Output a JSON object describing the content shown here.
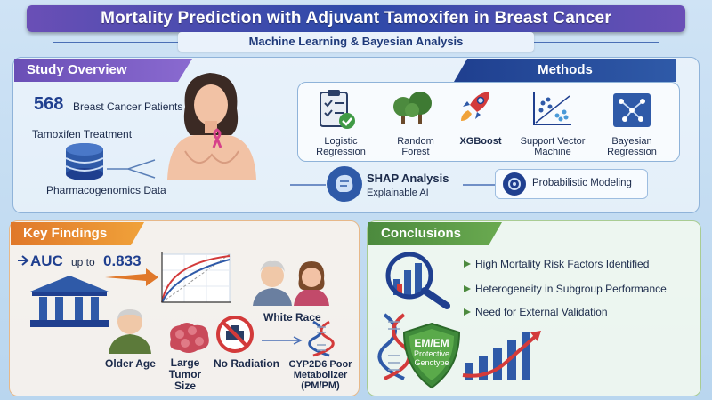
{
  "title": "Mortality Prediction with Adjuvant Tamoxifen in Breast Cancer",
  "subtitle": "Machine Learning & Bayesian Analysis",
  "overview": {
    "header": "Study Overview",
    "count": "568",
    "patients": "Breast Cancer Patients",
    "treatment": "Tamoxifen Treatment",
    "data": "Pharmacogenomics Data"
  },
  "methods": {
    "header": "Methods",
    "items": [
      {
        "label": "Logistic Regression",
        "icon": "checklist-icon"
      },
      {
        "label": "Random Forest",
        "icon": "trees-icon"
      },
      {
        "label": "XGBoost",
        "icon": "rocket-icon"
      },
      {
        "label": "Support Vector Machine",
        "icon": "svm-plot-icon"
      },
      {
        "label": "Bayesian Regression",
        "icon": "network-icon"
      }
    ],
    "shap_title": "SHAP Analysis",
    "shap_sub": "Explainable AI",
    "probabilistic": "Probabilistic Modeling"
  },
  "findings": {
    "header": "Key Findings",
    "auc_prefix": "AUC",
    "auc_mid": "up to",
    "auc_value": "0.833",
    "white_race": "White Race",
    "older_age": "Older Age",
    "tumor": "Large Tumor Size",
    "radiation": "No Radiation",
    "cyp": "CYP2D6 Poor Metabolizer (PM/PM)"
  },
  "conclusions": {
    "header": "Conclusions",
    "items": [
      "High Mortality Risk Factors Identified",
      "Heterogeneity in Subgroup Performance",
      "Need for External Validation"
    ],
    "badge_title": "EM/EM",
    "badge_sub": "Protective Genotype"
  },
  "colors": {
    "purple": "#6a4fb6",
    "navy": "#1f3f8f",
    "orange": "#e0782a",
    "green": "#4c8a3e"
  }
}
